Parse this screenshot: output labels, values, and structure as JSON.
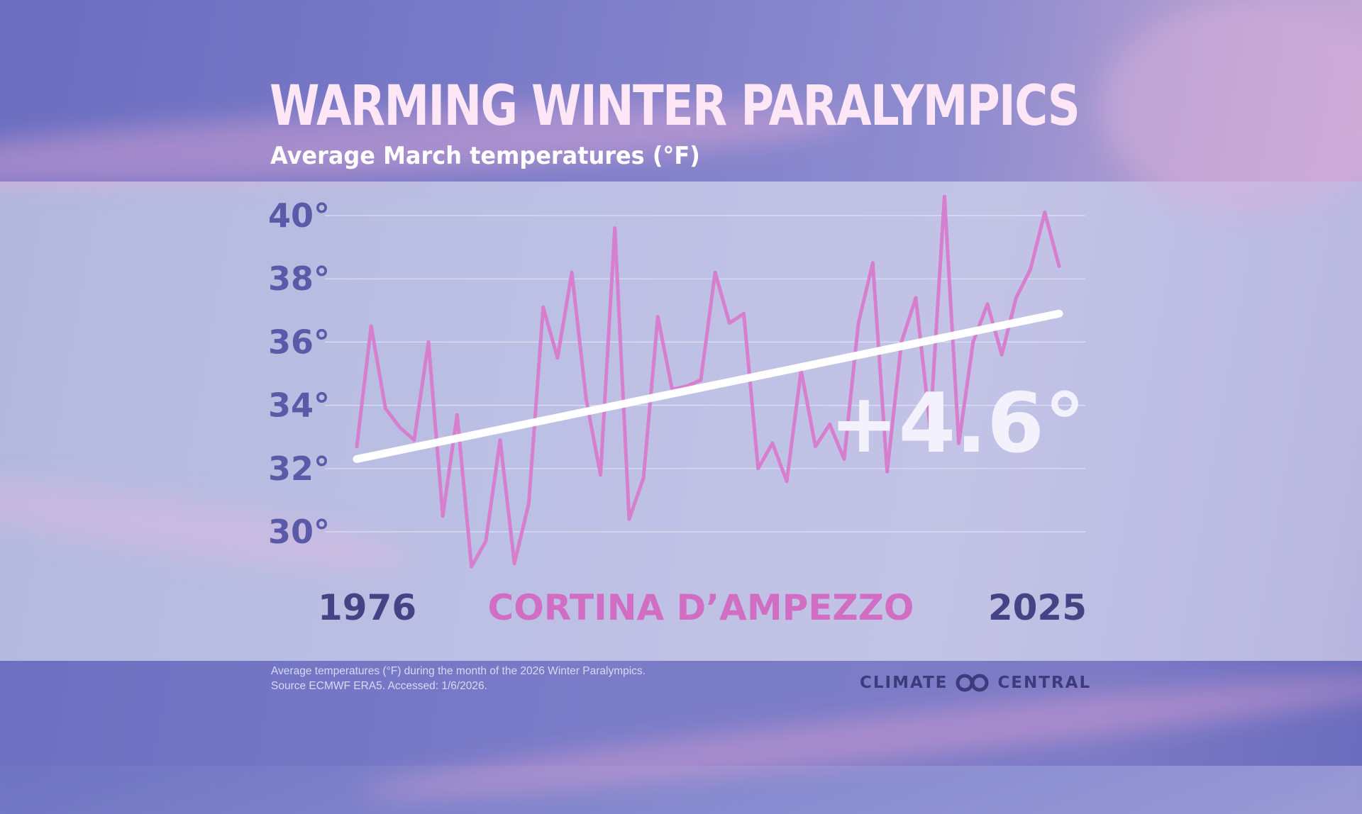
{
  "title": "WARMING WINTER PARALYMPICS",
  "subtitle": "Average March temperatures (°F)",
  "footnote": {
    "line1": "Average temperatures (°F) during the month of the 2026 Winter Paralympics.",
    "line2": "Source  ECMWF ERA5. Accessed: 1/6/2026."
  },
  "logo": {
    "left_text": "CLIMATE",
    "right_text": "CENTRAL"
  },
  "colors": {
    "series": "#d77fcf",
    "trend": "#ffffff",
    "axis_label": "#5b5aa9",
    "location": "#d16dc3",
    "year_label": "#454383"
  },
  "chart_data": {
    "type": "line",
    "title": "WARMING WINTER PARALYMPICS",
    "subtitle": "Average March temperatures (°F)",
    "location_label": "CORTINA D’AMPEZZO",
    "x_start_label": "1976",
    "x_end_label": "2025",
    "annotation": "+4.6°",
    "y_ticks": [
      "40°",
      "38°",
      "36°",
      "34°",
      "32°",
      "30°"
    ],
    "y_tick_values": [
      40,
      38,
      36,
      34,
      32,
      30
    ],
    "ylim": [
      29,
      41
    ],
    "grid": true,
    "x": [
      1976,
      1977,
      1978,
      1979,
      1980,
      1981,
      1982,
      1983,
      1984,
      1985,
      1986,
      1987,
      1988,
      1989,
      1990,
      1991,
      1992,
      1993,
      1994,
      1995,
      1996,
      1997,
      1998,
      1999,
      2000,
      2001,
      2002,
      2003,
      2004,
      2005,
      2006,
      2007,
      2008,
      2009,
      2010,
      2011,
      2012,
      2013,
      2014,
      2015,
      2016,
      2017,
      2018,
      2019,
      2020,
      2021,
      2022,
      2023,
      2024,
      2025
    ],
    "series": [
      {
        "values": [
          32.7,
          36.5,
          33.9,
          33.3,
          32.9,
          36.0,
          30.5,
          33.7,
          28.9,
          29.7,
          32.9,
          29.0,
          30.9,
          37.1,
          35.5,
          38.2,
          34.2,
          31.8,
          39.6,
          30.4,
          31.7,
          36.8,
          34.5,
          34.6,
          34.8,
          38.2,
          36.6,
          36.9,
          32.0,
          32.8,
          31.6,
          35.1,
          32.7,
          33.4,
          32.3,
          36.6,
          38.5,
          31.9,
          36.0,
          37.4,
          33.3,
          40.6,
          32.8,
          36.0,
          37.2,
          35.6,
          37.4,
          38.3,
          40.1,
          38.4
        ]
      },
      {
        "name": "trend",
        "values_endpoints": [
          32.3,
          36.9
        ]
      }
    ]
  }
}
